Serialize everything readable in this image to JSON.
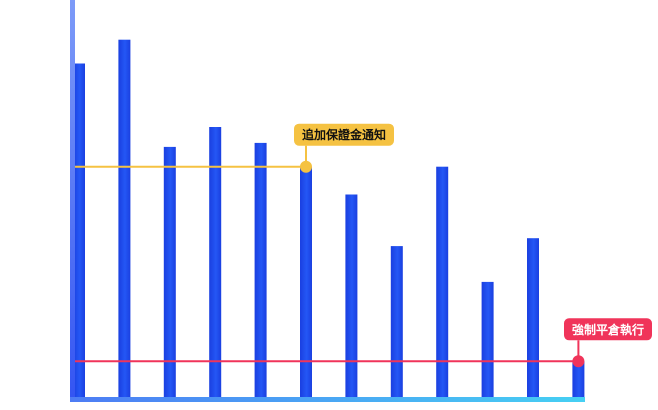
{
  "chart_data": {
    "type": "bar",
    "title": "",
    "xlabel": "",
    "ylabel": "",
    "ylim": [
      0,
      100
    ],
    "grid": false,
    "legend": "none",
    "values": [
      84,
      90,
      63,
      68,
      64,
      58,
      51,
      38,
      58,
      29,
      40,
      9
    ],
    "thresholds": [
      {
        "label": "追加保證金通知",
        "value": 58,
        "color": "#f5c242",
        "text_color": "#111111",
        "marker_index": 5
      },
      {
        "label": "強制平倉執行",
        "value": 9,
        "color": "#f0345a",
        "text_color": "#ffffff",
        "marker_index": 11
      }
    ],
    "colors": {
      "bar": "#1f4cf0",
      "axis_top": "#6b8cf7",
      "axis_bottom": "#3b5cf5",
      "baseline": "#48c7f2"
    }
  }
}
